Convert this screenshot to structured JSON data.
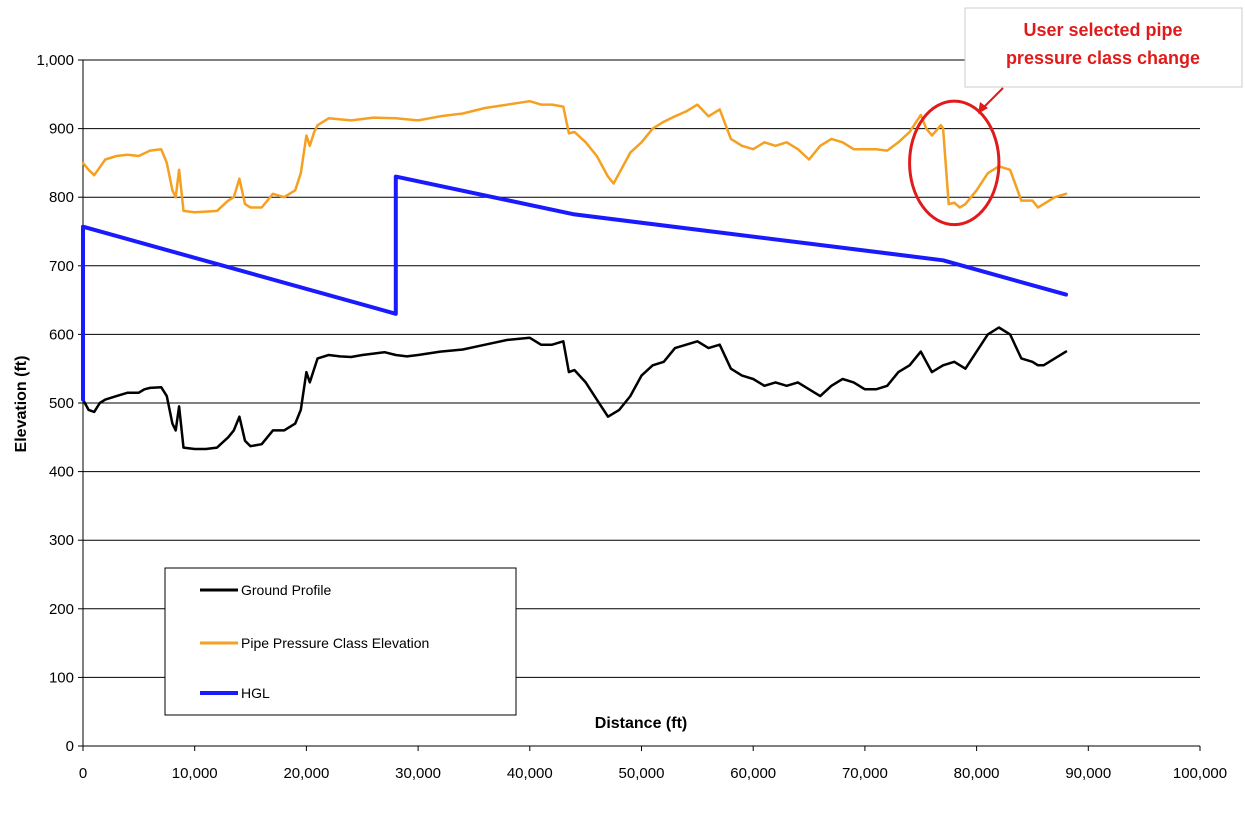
{
  "chart_data": {
    "type": "line",
    "title": "",
    "xlabel": "Distance (ft)",
    "ylabel": "Elevation (ft)",
    "xlim": [
      0,
      100000
    ],
    "ylim": [
      0,
      1000
    ],
    "x_ticks": [
      0,
      10000,
      20000,
      30000,
      40000,
      50000,
      60000,
      70000,
      80000,
      90000,
      100000
    ],
    "y_ticks": [
      0,
      100,
      200,
      300,
      400,
      500,
      600,
      700,
      800,
      900,
      1000
    ],
    "x_tick_labels": [
      "0",
      "10,000",
      "20,000",
      "30,000",
      "40,000",
      "50,000",
      "60,000",
      "70,000",
      "80,000",
      "90,000",
      "100,000"
    ],
    "y_tick_labels": [
      "0",
      "100",
      "200",
      "300",
      "400",
      "500",
      "600",
      "700",
      "800",
      "900",
      "1,000"
    ],
    "grid": "horizontal",
    "legend_position": "bottom-left",
    "series": [
      {
        "name": "Ground Profile",
        "color": "#000000",
        "x": [
          0,
          500,
          1000,
          1500,
          2000,
          3000,
          4000,
          5000,
          5500,
          6000,
          7000,
          7500,
          8000,
          8300,
          8600,
          9000,
          10000,
          11000,
          12000,
          13000,
          13500,
          14000,
          14500,
          15000,
          16000,
          17000,
          18000,
          19000,
          19500,
          20000,
          20300,
          20700,
          21000,
          22000,
          23000,
          24000,
          25000,
          26000,
          27000,
          28000,
          29000,
          30000,
          32000,
          34000,
          36000,
          38000,
          40000,
          41000,
          42000,
          43000,
          43500,
          44000,
          45000,
          46000,
          47000,
          47500,
          48000,
          49000,
          50000,
          51000,
          52000,
          53000,
          54000,
          55000,
          56000,
          57000,
          58000,
          59000,
          60000,
          61000,
          62000,
          63000,
          64000,
          65000,
          66000,
          67000,
          68000,
          69000,
          70000,
          71000,
          72000,
          73000,
          74000,
          75000,
          75500,
          76000,
          77000,
          78000,
          79000,
          80000,
          81000,
          82000,
          83000,
          84000,
          85000,
          85500,
          86000,
          87000,
          88000
        ],
        "values": [
          505,
          490,
          487,
          500,
          505,
          510,
          515,
          515,
          520,
          522,
          523,
          510,
          470,
          460,
          495,
          435,
          433,
          433,
          435,
          450,
          460,
          480,
          445,
          437,
          440,
          460,
          460,
          470,
          490,
          545,
          530,
          550,
          565,
          570,
          568,
          567,
          570,
          572,
          574,
          570,
          568,
          570,
          575,
          578,
          585,
          592,
          595,
          585,
          585,
          590,
          545,
          548,
          530,
          505,
          480,
          485,
          490,
          510,
          540,
          555,
          560,
          580,
          585,
          590,
          580,
          585,
          550,
          540,
          535,
          525,
          530,
          525,
          530,
          520,
          510,
          525,
          535,
          530,
          520,
          520,
          525,
          545,
          555,
          575,
          560,
          545,
          555,
          560,
          550,
          575,
          600,
          610,
          600,
          565,
          560,
          555,
          555,
          565,
          575
        ]
      },
      {
        "name": "Pipe Pressure Class Elevation",
        "color": "#f5a020",
        "x": [
          0,
          500,
          1000,
          2000,
          3000,
          4000,
          5000,
          6000,
          7000,
          7500,
          8000,
          8300,
          8600,
          9000,
          10000,
          11000,
          12000,
          13000,
          13500,
          14000,
          14500,
          15000,
          16000,
          17000,
          18000,
          19000,
          19500,
          20000,
          20300,
          20700,
          21000,
          22000,
          24000,
          26000,
          28000,
          30000,
          32000,
          34000,
          36000,
          38000,
          40000,
          41000,
          42000,
          43000,
          43500,
          44000,
          45000,
          46000,
          47000,
          47500,
          48000,
          49000,
          50000,
          51000,
          52000,
          53000,
          54000,
          55000,
          56000,
          57000,
          58000,
          59000,
          60000,
          61000,
          62000,
          63000,
          64000,
          65000,
          66000,
          67000,
          68000,
          69000,
          70000,
          71000,
          72000,
          73000,
          74000,
          75000,
          75500,
          76000,
          76800,
          77000,
          77500,
          78000,
          78500,
          79000,
          80000,
          81000,
          82000,
          83000,
          84000,
          85000,
          85500,
          86000,
          87000,
          88000
        ],
        "values": [
          850,
          840,
          832,
          855,
          860,
          862,
          860,
          868,
          870,
          850,
          810,
          800,
          840,
          780,
          778,
          779,
          780,
          795,
          800,
          827,
          790,
          785,
          785,
          805,
          800,
          810,
          835,
          890,
          875,
          895,
          905,
          915,
          912,
          916,
          915,
          912,
          918,
          922,
          930,
          935,
          940,
          935,
          935,
          932,
          893,
          895,
          880,
          860,
          830,
          820,
          835,
          865,
          880,
          900,
          910,
          918,
          925,
          935,
          918,
          928,
          885,
          875,
          870,
          880,
          875,
          880,
          870,
          855,
          875,
          885,
          880,
          870,
          870,
          870,
          868,
          880,
          895,
          920,
          900,
          890,
          905,
          900,
          790,
          792,
          785,
          790,
          810,
          835,
          845,
          840,
          795,
          795,
          785,
          790,
          800,
          805
        ]
      },
      {
        "name": "HGL",
        "color": "#1a1aff",
        "x": [
          0,
          0,
          28000,
          28000,
          44000,
          77000,
          88000
        ],
        "values": [
          505,
          757,
          630,
          830,
          775,
          708,
          658
        ]
      }
    ],
    "annotation": {
      "lines": [
        "User selected pipe",
        "pressure class change"
      ],
      "color": "#e01b1b",
      "circle_center": [
        78000,
        850
      ],
      "circle_radius_units": [
        4000,
        90
      ]
    }
  }
}
